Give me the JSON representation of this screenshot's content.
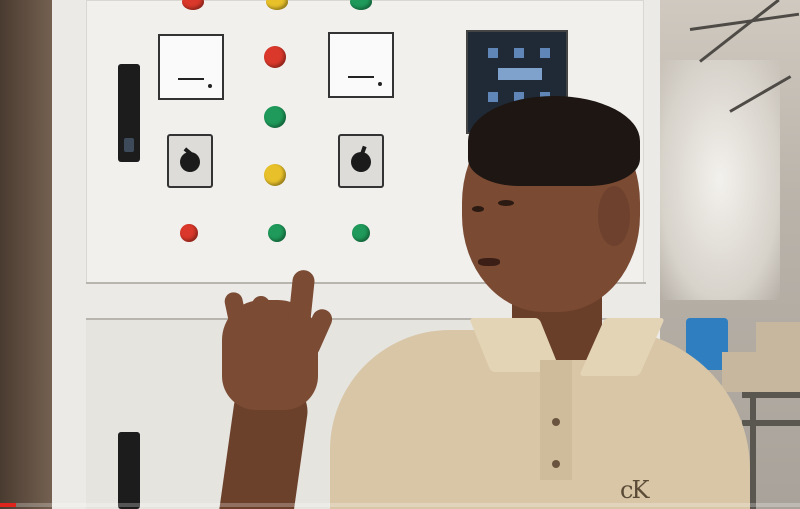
{
  "video": {
    "progress_fraction": 0.02,
    "progress_color": "#e0231d"
  },
  "scene": {
    "shirt_logo_text": "cK",
    "lamp_colors": {
      "red": "#d9382a",
      "green": "#1f9a5a",
      "yellow": "#e8c12a"
    }
  }
}
